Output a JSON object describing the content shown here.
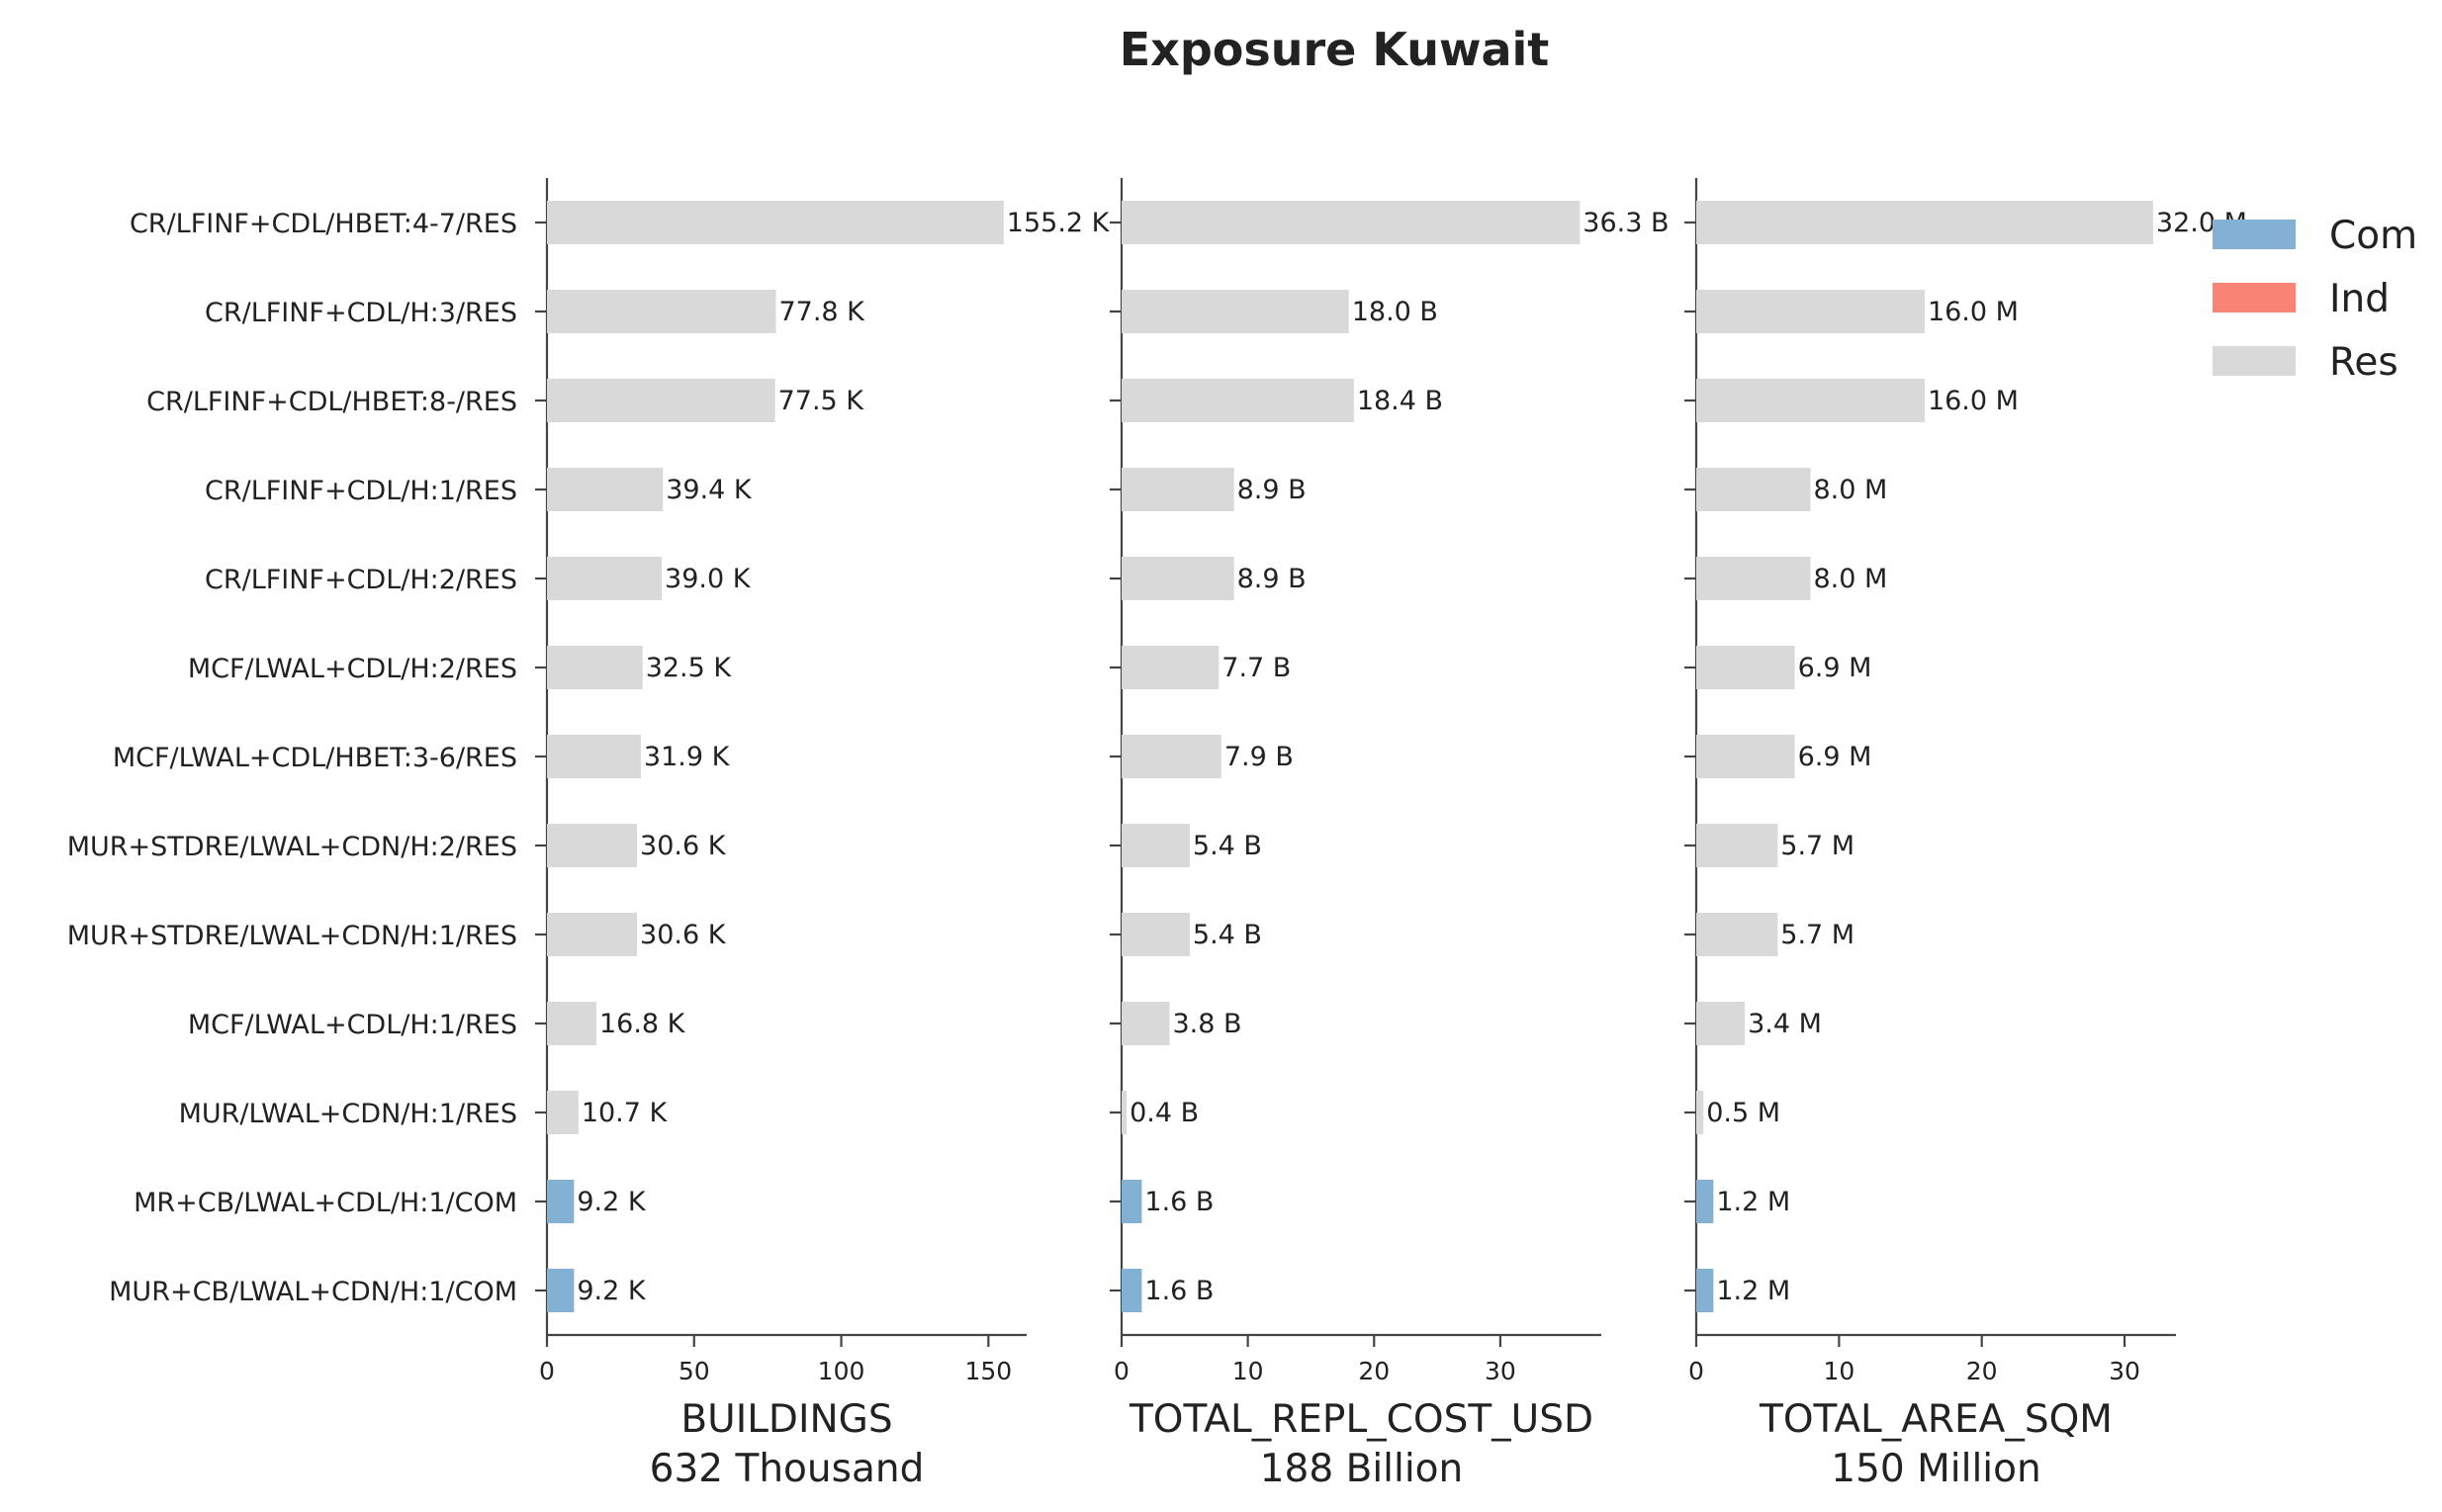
{
  "chart_data": {
    "type": "bar",
    "orientation": "horizontal",
    "title": "Exposure Kuwait",
    "categories": [
      "CR/LFINF+CDL/HBET:4-7/RES",
      "CR/LFINF+CDL/H:3/RES",
      "CR/LFINF+CDL/HBET:8-/RES",
      "CR/LFINF+CDL/H:1/RES",
      "CR/LFINF+CDL/H:2/RES",
      "MCF/LWAL+CDL/H:2/RES",
      "MCF/LWAL+CDL/HBET:3-6/RES",
      "MUR+STDRE/LWAL+CDN/H:2/RES",
      "MUR+STDRE/LWAL+CDN/H:1/RES",
      "MCF/LWAL+CDL/H:1/RES",
      "MUR/LWAL+CDN/H:1/RES",
      "MR+CB/LWAL+CDL/H:1/COM",
      "MUR+CB/LWAL+CDN/H:1/COM"
    ],
    "occupancy": [
      "Res",
      "Res",
      "Res",
      "Res",
      "Res",
      "Res",
      "Res",
      "Res",
      "Res",
      "Res",
      "Res",
      "Com",
      "Com"
    ],
    "legend": {
      "placement": "top-right",
      "entries": [
        {
          "label": "Com",
          "color": "#82b1d4"
        },
        {
          "label": "Ind",
          "color": "#f98476"
        },
        {
          "label": "Res",
          "color": "#d9d9d9"
        }
      ]
    },
    "panels": [
      {
        "xlabel": "BUILDINGS",
        "total": "632 Thousand",
        "xlim": [
          0,
          163
        ],
        "ticks": [
          0,
          50,
          100,
          150
        ],
        "values": [
          155.2,
          77.8,
          77.5,
          39.4,
          39.0,
          32.5,
          31.9,
          30.6,
          30.6,
          16.8,
          10.7,
          9.2,
          9.2
        ],
        "labels": [
          "155.2 K",
          "77.8 K",
          "77.5 K",
          "39.4 K",
          "39.0 K",
          "32.5 K",
          "31.9 K",
          "30.6 K",
          "30.6 K",
          "16.8 K",
          "10.7 K",
          "9.2 K",
          "9.2 K"
        ]
      },
      {
        "xlabel": "TOTAL_REPL_COST_USD",
        "total": "188 Billion",
        "xlim": [
          0,
          38
        ],
        "ticks": [
          0,
          10,
          20,
          30
        ],
        "values": [
          36.3,
          18.0,
          18.4,
          8.9,
          8.9,
          7.7,
          7.9,
          5.4,
          5.4,
          3.8,
          0.4,
          1.6,
          1.6
        ],
        "labels": [
          "36.3 B",
          "18.0 B",
          "18.4 B",
          "8.9 B",
          "8.9 B",
          "7.7 B",
          "7.9 B",
          "5.4 B",
          "5.4 B",
          "3.8 B",
          "0.4 B",
          "1.6 B",
          "1.6 B"
        ]
      },
      {
        "xlabel": "TOTAL_AREA_SQM",
        "total": "150 Million",
        "xlim": [
          0,
          33.6
        ],
        "ticks": [
          0,
          10,
          20,
          30
        ],
        "values": [
          32.0,
          16.0,
          16.0,
          8.0,
          8.0,
          6.9,
          6.9,
          5.7,
          5.7,
          3.4,
          0.5,
          1.2,
          1.2
        ],
        "labels": [
          "32.0 M",
          "16.0 M",
          "16.0 M",
          "8.0 M",
          "8.0 M",
          "6.9 M",
          "6.9 M",
          "5.7 M",
          "5.7 M",
          "3.4 M",
          "0.5 M",
          "1.2 M",
          "1.2 M"
        ]
      }
    ],
    "grid": false
  }
}
